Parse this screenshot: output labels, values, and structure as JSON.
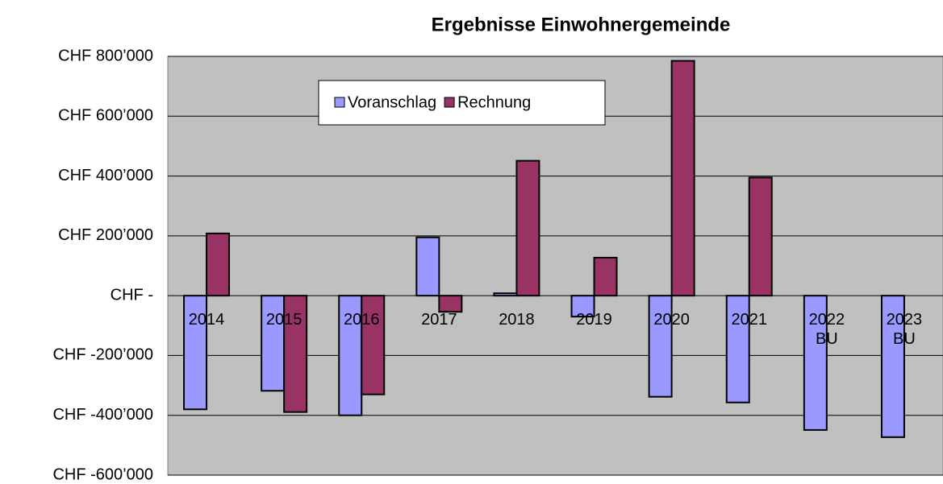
{
  "chart_data": {
    "type": "bar",
    "title": "Ergebnisse Einwohnergemeinde",
    "categories": [
      "2014",
      "2015",
      "2016",
      "2017",
      "2018",
      "2019",
      "2020",
      "2021",
      "2022 BU",
      "2023 BU"
    ],
    "series": [
      {
        "name": "Voranschlag",
        "color": "#9999ff",
        "values": [
          -380000,
          -318000,
          -400000,
          195000,
          8000,
          -70000,
          -338000,
          -357000,
          -449000,
          -473000
        ]
      },
      {
        "name": "Rechnung",
        "color": "#993366",
        "values": [
          208000,
          -389000,
          -330000,
          -54000,
          451000,
          127000,
          785000,
          395000,
          null,
          null
        ]
      }
    ],
    "ylim": [
      -600000,
      800000
    ],
    "yticks": [
      {
        "value": -600000,
        "label": "CHF -600’000"
      },
      {
        "value": -400000,
        "label": "CHF -400’000"
      },
      {
        "value": -200000,
        "label": "CHF -200’000"
      },
      {
        "value": 0,
        "label": "CHF -"
      },
      {
        "value": 200000,
        "label": "CHF 200’000"
      },
      {
        "value": 400000,
        "label": "CHF 400’000"
      },
      {
        "value": 600000,
        "label": "CHF 600’000"
      },
      {
        "value": 800000,
        "label": "CHF 800’000"
      }
    ],
    "grid": true
  }
}
